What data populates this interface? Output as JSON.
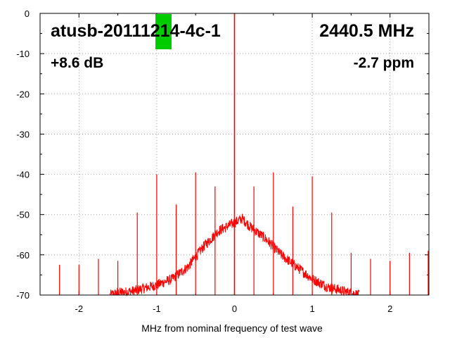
{
  "chart_data": {
    "type": "line",
    "title": "",
    "xlabel": "MHz from nominal frequency of test wave",
    "ylabel": "",
    "xlim": [
      -2.5,
      2.5
    ],
    "ylim": [
      -70,
      0
    ],
    "x_ticks": [
      -2,
      -1,
      0,
      1,
      2
    ],
    "x_tick_labels": [
      "-2",
      "-1",
      "0",
      "1",
      "2"
    ],
    "y_ticks": [
      0,
      -10,
      -20,
      -30,
      -40,
      -50,
      -60,
      -70
    ],
    "y_tick_labels": [
      "0",
      "-10",
      "-20",
      "-30",
      "-40",
      "-50",
      "-60",
      "-70"
    ],
    "grid": true,
    "legend": "none",
    "series_color": "#ff0000",
    "annotations": {
      "device_id": "atusb-20111214-4c-1",
      "frequency": "2440.5 MHz",
      "gain": "+8.6 dB",
      "offset": "-2.7 ppm",
      "marker_color": "#00cc00"
    },
    "noise_envelope": [
      {
        "x": -1.6,
        "y": -70
      },
      {
        "x": -1.5,
        "y": -69.5
      },
      {
        "x": -1.3,
        "y": -69
      },
      {
        "x": -1.0,
        "y": -67.5
      },
      {
        "x": -0.8,
        "y": -66
      },
      {
        "x": -0.6,
        "y": -63
      },
      {
        "x": -0.4,
        "y": -58
      },
      {
        "x": -0.2,
        "y": -54
      },
      {
        "x": 0.0,
        "y": -52
      },
      {
        "x": 0.1,
        "y": -51
      },
      {
        "x": 0.2,
        "y": -53
      },
      {
        "x": 0.4,
        "y": -56
      },
      {
        "x": 0.6,
        "y": -60
      },
      {
        "x": 0.8,
        "y": -63
      },
      {
        "x": 1.0,
        "y": -66
      },
      {
        "x": 1.2,
        "y": -68
      },
      {
        "x": 1.4,
        "y": -69
      },
      {
        "x": 1.6,
        "y": -70
      }
    ],
    "spurs": [
      {
        "x": -2.25,
        "y": -62.5
      },
      {
        "x": -2.0,
        "y": -62.5
      },
      {
        "x": -1.75,
        "y": -61
      },
      {
        "x": -1.5,
        "y": -61.5
      },
      {
        "x": -1.25,
        "y": -49.5
      },
      {
        "x": -1.0,
        "y": -40
      },
      {
        "x": -0.75,
        "y": -47.5
      },
      {
        "x": -0.5,
        "y": -39.5
      },
      {
        "x": -0.25,
        "y": -43
      },
      {
        "x": 0.0,
        "y": 0
      },
      {
        "x": 0.25,
        "y": -43
      },
      {
        "x": 0.5,
        "y": -39.5
      },
      {
        "x": 0.75,
        "y": -48
      },
      {
        "x": 1.0,
        "y": -40.5
      },
      {
        "x": 1.25,
        "y": -49.5
      },
      {
        "x": 1.5,
        "y": -59.5
      },
      {
        "x": 1.75,
        "y": -61
      },
      {
        "x": 2.0,
        "y": -61.5
      },
      {
        "x": 2.25,
        "y": -59.5
      },
      {
        "x": 2.5,
        "y": -59
      }
    ]
  }
}
